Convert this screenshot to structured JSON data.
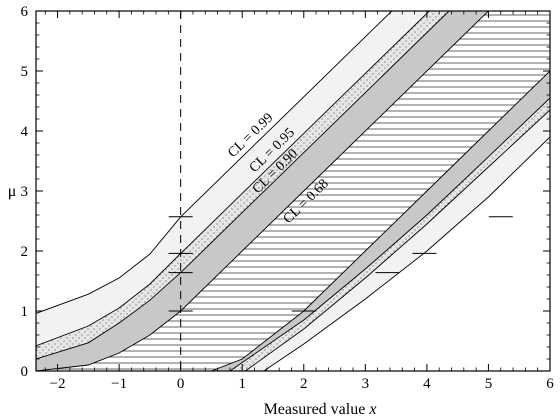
{
  "chart_data": {
    "type": "area",
    "xlabel": "Measured value",
    "xlabel_var": "x",
    "ylabel": "μ",
    "xlim": [
      -2.35,
      6.0
    ],
    "ylim": [
      0,
      6.0
    ],
    "x_ticks": [
      -2,
      -1,
      0,
      1,
      2,
      3,
      4,
      5,
      6
    ],
    "x_tick_labels": [
      "−2",
      "−1",
      "0",
      "1",
      "2",
      "3",
      "4",
      "5",
      "6"
    ],
    "y_ticks": [
      0,
      1,
      2,
      3,
      4,
      5,
      6
    ],
    "y_tick_labels": [
      "0",
      "1",
      "2",
      "3",
      "4",
      "5",
      "6"
    ],
    "reference_line_x": 0,
    "bands": [
      {
        "cl": "CL = 0.99",
        "fill": "#f2f2f2",
        "pattern": "none",
        "upper": [
          [
            -2.35,
            0.96
          ],
          [
            -1.5,
            1.28
          ],
          [
            -1.0,
            1.55
          ],
          [
            -0.5,
            1.95
          ],
          [
            0,
            2.57
          ],
          [
            1,
            3.57
          ],
          [
            2,
            4.57
          ],
          [
            3.43,
            6.0
          ]
        ],
        "lower": [
          [
            1.35,
            0.0
          ],
          [
            2,
            0.45
          ],
          [
            3,
            1.2
          ],
          [
            4,
            2.0
          ],
          [
            5,
            2.9
          ],
          [
            6,
            3.9
          ]
        ]
      },
      {
        "cl": "CL = 0.95",
        "fill": "#e6e6e6",
        "pattern": "dots",
        "upper": [
          [
            -2.35,
            0.42
          ],
          [
            -1.5,
            0.75
          ],
          [
            -1.0,
            1.05
          ],
          [
            -0.5,
            1.45
          ],
          [
            0,
            1.96
          ],
          [
            1,
            2.96
          ],
          [
            2,
            3.96
          ],
          [
            4.04,
            6.0
          ]
        ],
        "lower": [
          [
            1.05,
            0.0
          ],
          [
            2,
            0.7
          ],
          [
            3,
            1.55
          ],
          [
            4,
            2.45
          ],
          [
            5,
            3.4
          ],
          [
            6,
            4.35
          ]
        ]
      },
      {
        "cl": "CL = 0.90",
        "fill": "#c8c8c8",
        "pattern": "none",
        "upper": [
          [
            -2.35,
            0.2
          ],
          [
            -1.5,
            0.47
          ],
          [
            -1.0,
            0.8
          ],
          [
            -0.5,
            1.18
          ],
          [
            0,
            1.64
          ],
          [
            1,
            2.64
          ],
          [
            2,
            3.64
          ],
          [
            4.36,
            6.0
          ]
        ],
        "lower": [
          [
            0.8,
            0.0
          ],
          [
            2,
            0.85
          ],
          [
            3,
            1.7
          ],
          [
            4,
            2.6
          ],
          [
            5,
            3.57
          ],
          [
            6,
            4.55
          ]
        ]
      },
      {
        "cl": "CL = 0.68",
        "fill": "#ffffff",
        "pattern": "hlines",
        "upper": [
          [
            -2.35,
            0.0
          ],
          [
            -1.5,
            0.1
          ],
          [
            -1.0,
            0.3
          ],
          [
            -0.5,
            0.6
          ],
          [
            0,
            1.0
          ],
          [
            1,
            2.0
          ],
          [
            2,
            3.0
          ],
          [
            5.0,
            6.0
          ]
        ],
        "lower": [
          [
            0.5,
            0.0
          ],
          [
            1,
            0.2
          ],
          [
            2,
            1.0
          ],
          [
            3,
            2.0
          ],
          [
            4,
            3.0
          ],
          [
            5,
            4.0
          ],
          [
            6,
            5.0
          ]
        ]
      }
    ],
    "band_labels": [
      {
        "text": "CL = 0.99",
        "x": 0.85,
        "y": 3.55
      },
      {
        "text": "CL = 0.95",
        "x": 1.2,
        "y": 3.3
      },
      {
        "text": "CL = 0.90",
        "x": 1.25,
        "y": 2.95
      },
      {
        "text": "CL = 0.68",
        "x": 1.75,
        "y": 2.45
      }
    ],
    "interval_marks": [
      {
        "x": 0,
        "y": 2.57
      },
      {
        "x": 0,
        "y": 1.96
      },
      {
        "x": 0,
        "y": 1.64
      },
      {
        "x": 0,
        "y": 1.0
      },
      {
        "x": 2,
        "y": 1.0
      },
      {
        "x": 3.36,
        "y": 1.64
      },
      {
        "x": 3.96,
        "y": 1.96
      },
      {
        "x": 5.2,
        "y": 2.57
      }
    ]
  }
}
